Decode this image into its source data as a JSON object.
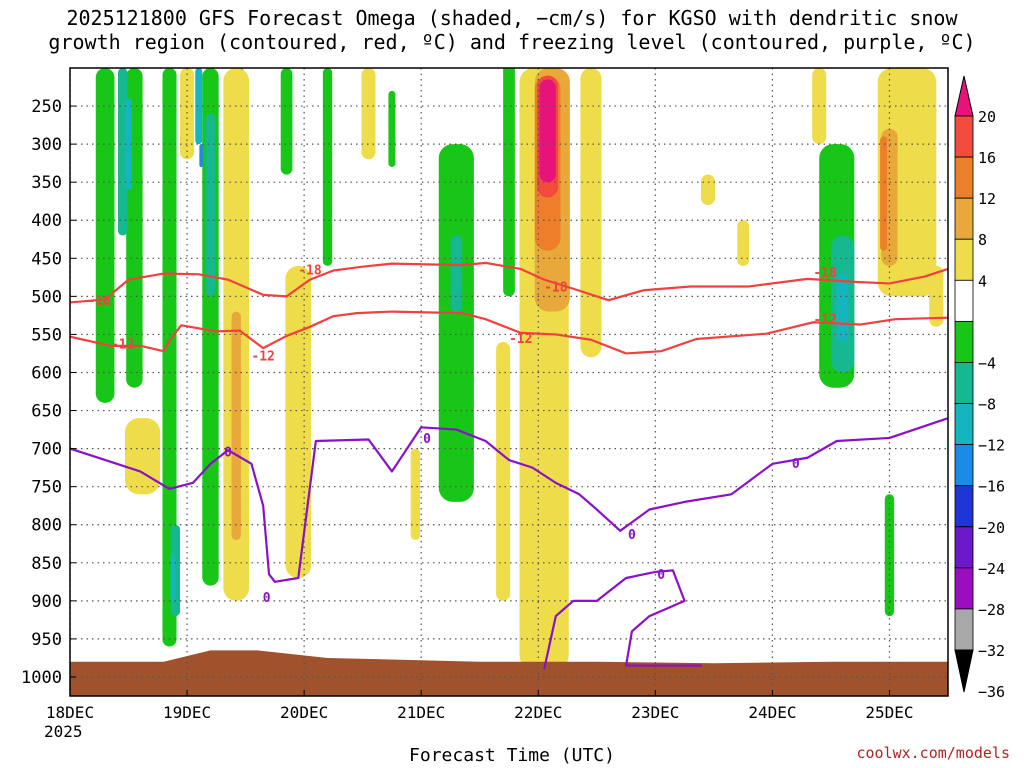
{
  "title_line1": "2025121800 GFS Forecast Omega (shaded, −cm/s) for KGSO with dendritic snow",
  "title_line2": "growth region (contoured, red, ºC) and freezing level (contoured, purple, ºC)",
  "credit": "coolwx.com/models",
  "chart_data": {
    "type": "heatmap",
    "xlabel": "Forecast Time (UTC)",
    "ylabel": "",
    "x_ticks": [
      "18DEC",
      "19DEC",
      "20DEC",
      "21DEC",
      "22DEC",
      "23DEC",
      "24DEC",
      "25DEC"
    ],
    "x_tick_sublabel": "2025",
    "x_range_days": [
      0,
      7.5
    ],
    "y_ticks": [
      250,
      300,
      350,
      400,
      450,
      500,
      550,
      600,
      650,
      700,
      750,
      800,
      850,
      900,
      950,
      1000
    ],
    "y_range_hpa": [
      200,
      1025
    ],
    "grid": true,
    "colorbar": {
      "labels": [
        "20",
        "16",
        "12",
        "8",
        "4",
        "−4",
        "−8",
        "−12",
        "−16",
        "−20",
        "−24",
        "−28",
        "−32",
        "−36"
      ],
      "bins": [
        {
          "min": 20,
          "max": null,
          "color": "#e8137a"
        },
        {
          "min": 16,
          "max": 20,
          "color": "#f24a3c"
        },
        {
          "min": 12,
          "max": 16,
          "color": "#ee7f2a"
        },
        {
          "min": 8,
          "max": 12,
          "color": "#e8a83a"
        },
        {
          "min": 4,
          "max": 8,
          "color": "#eedc4a"
        },
        {
          "min": -4,
          "max": 4,
          "color": "#ffffff"
        },
        {
          "min": -8,
          "max": -4,
          "color": "#17c617"
        },
        {
          "min": -12,
          "max": -8,
          "color": "#16b890"
        },
        {
          "min": -16,
          "max": -12,
          "color": "#15b5c0"
        },
        {
          "min": -20,
          "max": -16,
          "color": "#1a8ce8"
        },
        {
          "min": -24,
          "max": -20,
          "color": "#2035d8"
        },
        {
          "min": -28,
          "max": -24,
          "color": "#6a18c8"
        },
        {
          "min": -32,
          "max": -28,
          "color": "#9a0ec0"
        },
        {
          "min": -36,
          "max": -32,
          "color": "#a8a8a8"
        },
        {
          "min": null,
          "max": -36,
          "color": "#000000"
        }
      ]
    },
    "omega_regions": [
      {
        "t": 0.3,
        "p0": 200,
        "p1": 640,
        "w": 0.16,
        "value": -6
      },
      {
        "t": 0.55,
        "p0": 200,
        "p1": 620,
        "w": 0.14,
        "value": -6
      },
      {
        "t": 0.85,
        "p0": 200,
        "p1": 960,
        "w": 0.12,
        "value": -6
      },
      {
        "t": 1.2,
        "p0": 200,
        "p1": 880,
        "w": 0.14,
        "value": -6
      },
      {
        "t": 1.45,
        "p0": 200,
        "p1": 380,
        "w": 0.08,
        "value": -6
      },
      {
        "t": 1.85,
        "p0": 200,
        "p1": 340,
        "w": 0.1,
        "value": -6
      },
      {
        "t": 2.2,
        "p0": 200,
        "p1": 460,
        "w": 0.08,
        "value": -6
      },
      {
        "t": 2.75,
        "p0": 230,
        "p1": 330,
        "w": 0.06,
        "value": -6
      },
      {
        "t": 3.3,
        "p0": 300,
        "p1": 770,
        "w": 0.3,
        "value": -6
      },
      {
        "t": 3.75,
        "p0": 180,
        "p1": 500,
        "w": 0.1,
        "value": -6
      },
      {
        "t": 6.55,
        "p0": 300,
        "p1": 620,
        "w": 0.3,
        "value": -6
      },
      {
        "t": 7.0,
        "p0": 760,
        "p1": 920,
        "w": 0.08,
        "value": -6
      },
      {
        "t": 0.45,
        "p0": 200,
        "p1": 420,
        "w": 0.08,
        "value": -10
      },
      {
        "t": 0.9,
        "p0": 800,
        "p1": 920,
        "w": 0.08,
        "value": -10
      },
      {
        "t": 1.2,
        "p0": 260,
        "p1": 500,
        "w": 0.08,
        "value": -10
      },
      {
        "t": 3.3,
        "p0": 420,
        "p1": 520,
        "w": 0.1,
        "value": -10
      },
      {
        "t": 3.95,
        "p0": 300,
        "p1": 400,
        "w": 0.06,
        "value": -10
      },
      {
        "t": 6.6,
        "p0": 420,
        "p1": 600,
        "w": 0.2,
        "value": -10
      },
      {
        "t": 0.5,
        "p0": 240,
        "p1": 360,
        "w": 0.06,
        "value": -14
      },
      {
        "t": 1.1,
        "p0": 200,
        "p1": 300,
        "w": 0.06,
        "value": -14
      },
      {
        "t": 0.88,
        "p0": 840,
        "p1": 900,
        "w": 0.04,
        "value": -14
      },
      {
        "t": 6.6,
        "p0": 470,
        "p1": 560,
        "w": 0.1,
        "value": -14
      },
      {
        "t": 1.12,
        "p0": 300,
        "p1": 330,
        "w": 0.03,
        "value": -18
      },
      {
        "t": 1.42,
        "p0": 200,
        "p1": 900,
        "w": 0.22,
        "value": 6
      },
      {
        "t": 1.95,
        "p0": 460,
        "p1": 870,
        "w": 0.22,
        "value": 6
      },
      {
        "t": 0.62,
        "p0": 660,
        "p1": 760,
        "w": 0.3,
        "value": 6
      },
      {
        "t": 1.0,
        "p0": 200,
        "p1": 320,
        "w": 0.12,
        "value": 6
      },
      {
        "t": 2.55,
        "p0": 200,
        "p1": 320,
        "w": 0.12,
        "value": 6
      },
      {
        "t": 2.95,
        "p0": 700,
        "p1": 820,
        "w": 0.08,
        "value": 6
      },
      {
        "t": 3.7,
        "p0": 560,
        "p1": 900,
        "w": 0.12,
        "value": 6
      },
      {
        "t": 4.05,
        "p0": 200,
        "p1": 990,
        "w": 0.42,
        "value": 6
      },
      {
        "t": 4.45,
        "p0": 200,
        "p1": 580,
        "w": 0.18,
        "value": 6
      },
      {
        "t": 5.45,
        "p0": 340,
        "p1": 380,
        "w": 0.12,
        "value": 6
      },
      {
        "t": 5.75,
        "p0": 400,
        "p1": 460,
        "w": 0.1,
        "value": 6
      },
      {
        "t": 6.4,
        "p0": 200,
        "p1": 300,
        "w": 0.12,
        "value": 6
      },
      {
        "t": 7.15,
        "p0": 200,
        "p1": 500,
        "w": 0.5,
        "value": 6
      },
      {
        "t": 7.4,
        "p0": 460,
        "p1": 540,
        "w": 0.12,
        "value": 6
      },
      {
        "t": 1.42,
        "p0": 520,
        "p1": 820,
        "w": 0.08,
        "value": 10
      },
      {
        "t": 4.12,
        "p0": 200,
        "p1": 520,
        "w": 0.3,
        "value": 10
      },
      {
        "t": 7.0,
        "p0": 280,
        "p1": 460,
        "w": 0.14,
        "value": 10
      },
      {
        "t": 4.08,
        "p0": 210,
        "p1": 440,
        "w": 0.22,
        "value": 14
      },
      {
        "t": 6.95,
        "p0": 290,
        "p1": 440,
        "w": 0.06,
        "value": 14
      },
      {
        "t": 4.08,
        "p0": 210,
        "p1": 370,
        "w": 0.18,
        "value": 18
      },
      {
        "t": 4.08,
        "p0": 215,
        "p1": 350,
        "w": 0.14,
        "value": 22
      }
    ],
    "terrain": {
      "color": "#a0522d",
      "points": [
        [
          0,
          980
        ],
        [
          0.8,
          980
        ],
        [
          1.2,
          965
        ],
        [
          1.6,
          965
        ],
        [
          2.2,
          975
        ],
        [
          3.5,
          980
        ],
        [
          4.5,
          980
        ],
        [
          5.5,
          982
        ],
        [
          6.5,
          980
        ],
        [
          7.5,
          980
        ]
      ]
    },
    "contours": [
      {
        "name": "-18",
        "color": "#f04040",
        "labels": [
          {
            "t": 0.25,
            "p": 505
          },
          {
            "t": 2.05,
            "p": 465
          },
          {
            "t": 4.15,
            "p": 487
          },
          {
            "t": 6.45,
            "p": 468
          }
        ],
        "points": [
          [
            0,
            508
          ],
          [
            0.3,
            504
          ],
          [
            0.5,
            478
          ],
          [
            0.8,
            470
          ],
          [
            1.1,
            471
          ],
          [
            1.35,
            478
          ],
          [
            1.65,
            498
          ],
          [
            1.85,
            500
          ],
          [
            2.05,
            478
          ],
          [
            2.25,
            466
          ],
          [
            2.5,
            461
          ],
          [
            2.75,
            457
          ],
          [
            3.05,
            458
          ],
          [
            3.35,
            459
          ],
          [
            3.55,
            456
          ],
          [
            3.85,
            464
          ],
          [
            4.05,
            478
          ],
          [
            4.3,
            490
          ],
          [
            4.6,
            505
          ],
          [
            4.9,
            492
          ],
          [
            5.3,
            487
          ],
          [
            5.8,
            487
          ],
          [
            6.3,
            477
          ],
          [
            6.7,
            481
          ],
          [
            7.0,
            483
          ],
          [
            7.3,
            474
          ],
          [
            7.5,
            464
          ]
        ]
      },
      {
        "name": "-12",
        "color": "#f04040",
        "labels": [
          {
            "t": 0.45,
            "p": 562
          },
          {
            "t": 1.65,
            "p": 578
          },
          {
            "t": 3.85,
            "p": 555
          },
          {
            "t": 6.45,
            "p": 530
          }
        ],
        "points": [
          [
            0,
            553
          ],
          [
            0.35,
            565
          ],
          [
            0.6,
            565
          ],
          [
            0.8,
            572
          ],
          [
            0.85,
            558
          ],
          [
            0.95,
            538
          ],
          [
            1.25,
            546
          ],
          [
            1.45,
            545
          ],
          [
            1.65,
            568
          ],
          [
            1.85,
            552
          ],
          [
            2.05,
            540
          ],
          [
            2.25,
            526
          ],
          [
            2.45,
            522
          ],
          [
            2.75,
            520
          ],
          [
            3.05,
            521
          ],
          [
            3.35,
            522
          ],
          [
            3.55,
            530
          ],
          [
            3.85,
            548
          ],
          [
            4.15,
            550
          ],
          [
            4.45,
            557
          ],
          [
            4.75,
            575
          ],
          [
            5.05,
            572
          ],
          [
            5.35,
            556
          ],
          [
            5.95,
            549
          ],
          [
            6.35,
            534
          ],
          [
            6.75,
            537
          ],
          [
            7.05,
            530
          ],
          [
            7.5,
            528
          ]
        ]
      },
      {
        "name": "0",
        "color": "#8b10c8",
        "labels": [
          {
            "t": 1.35,
            "p": 704
          },
          {
            "t": 3.05,
            "p": 686
          },
          {
            "t": 4.8,
            "p": 812
          },
          {
            "t": 6.2,
            "p": 719
          },
          {
            "t": 1.68,
            "p": 895
          },
          {
            "t": 5.05,
            "p": 865
          }
        ],
        "points": [
          [
            0,
            700
          ],
          [
            0.4,
            720
          ],
          [
            0.6,
            730
          ],
          [
            0.85,
            753
          ],
          [
            1.05,
            745
          ],
          [
            1.2,
            720
          ],
          [
            1.35,
            702
          ],
          [
            1.55,
            720
          ],
          [
            1.65,
            775
          ],
          [
            1.7,
            865
          ],
          [
            1.75,
            875
          ],
          [
            1.95,
            870
          ],
          [
            2.1,
            690
          ],
          [
            2.55,
            688
          ],
          [
            2.75,
            730
          ],
          [
            3.0,
            672
          ],
          [
            3.3,
            675
          ],
          [
            3.55,
            690
          ],
          [
            3.75,
            715
          ],
          [
            3.95,
            725
          ],
          [
            4.15,
            745
          ],
          [
            4.35,
            760
          ],
          [
            4.5,
            780
          ],
          [
            4.7,
            808
          ],
          [
            4.95,
            780
          ],
          [
            5.25,
            770
          ],
          [
            5.65,
            760
          ],
          [
            6.0,
            720
          ],
          [
            6.3,
            712
          ],
          [
            6.55,
            690
          ],
          [
            7.0,
            686
          ],
          [
            7.5,
            660
          ]
        ]
      },
      {
        "name": "0b",
        "color": "#8b10c8",
        "labels": [],
        "points": [
          [
            4.05,
            990
          ],
          [
            4.15,
            920
          ],
          [
            4.3,
            900
          ],
          [
            4.5,
            900
          ],
          [
            4.75,
            870
          ],
          [
            5.0,
            862
          ],
          [
            5.15,
            860
          ],
          [
            5.25,
            900
          ],
          [
            4.95,
            920
          ],
          [
            4.8,
            940
          ],
          [
            4.75,
            985
          ],
          [
            5.2,
            985
          ],
          [
            5.4,
            985
          ]
        ]
      }
    ]
  }
}
